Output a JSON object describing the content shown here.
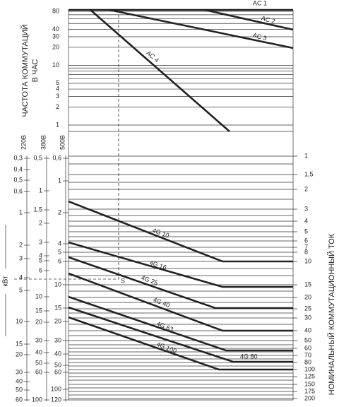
{
  "left_title": [
    "ЧАСТОТА КОММУТАЦИЙ",
    "В ЧАС"
  ],
  "right_title": "НОМИНАЛЬНЫЙ КОММУТАЦИОННЫЙ ТОК",
  "power_title": "кВт",
  "top_scale": [
    "80",
    "40",
    "30",
    "20",
    "10",
    "5",
    "4",
    "3",
    "2",
    "1"
  ],
  "top_curves": [
    "AC 1",
    "AC 2",
    "AC 3",
    "AC 4"
  ],
  "voltage_headers": [
    "220В",
    "380В",
    "500В"
  ],
  "scale_220": [
    "0,3",
    "0,4",
    "0,5",
    "0,6",
    "1",
    "2",
    "3",
    "4",
    "5",
    "10",
    "15",
    "20",
    "30",
    "40",
    "50",
    "60"
  ],
  "scale_380": [
    "0,5",
    "1",
    "1,5",
    "2",
    "3",
    "4",
    "5",
    "6",
    "10",
    "15",
    "20",
    "30",
    "40",
    "50",
    "60",
    "100"
  ],
  "scale_500": [
    "0,6",
    "1",
    "2",
    "4",
    "5",
    "6",
    "10",
    "15",
    "20",
    "30",
    "40",
    "50",
    "60",
    "100",
    "120"
  ],
  "current_scale": [
    "1",
    "1,5",
    "2",
    "3",
    "4",
    "5",
    "6",
    "7",
    "8",
    "10",
    "15",
    "20",
    "25",
    "30",
    "40",
    "50",
    "60",
    "70",
    "80",
    "100",
    "125",
    "150",
    "175",
    "200"
  ],
  "bottom_curves": [
    "4G 10",
    "4G 16",
    "4G 25",
    "4G 40",
    "4G 63",
    "4G 80",
    "4G 100"
  ],
  "point_label": "S"
}
